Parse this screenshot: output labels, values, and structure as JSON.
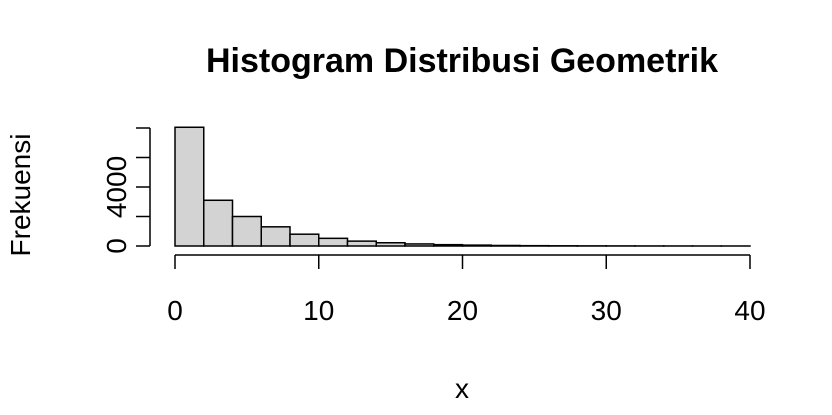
{
  "chart_data": {
    "type": "bar",
    "title": "Histogram Distribusi Geometrik",
    "xlabel": "x",
    "ylabel": "Frekuensi",
    "bin_width": 2,
    "bins": [
      {
        "x0": 0,
        "x1": 2,
        "count": 8050
      },
      {
        "x0": 2,
        "x1": 4,
        "count": 3100
      },
      {
        "x0": 4,
        "x1": 6,
        "count": 2000
      },
      {
        "x0": 6,
        "x1": 8,
        "count": 1300
      },
      {
        "x0": 8,
        "x1": 10,
        "count": 800
      },
      {
        "x0": 10,
        "x1": 12,
        "count": 520
      },
      {
        "x0": 12,
        "x1": 14,
        "count": 330
      },
      {
        "x0": 14,
        "x1": 16,
        "count": 220
      },
      {
        "x0": 16,
        "x1": 18,
        "count": 140
      },
      {
        "x0": 18,
        "x1": 20,
        "count": 90
      },
      {
        "x0": 20,
        "x1": 22,
        "count": 60
      },
      {
        "x0": 22,
        "x1": 24,
        "count": 35
      },
      {
        "x0": 24,
        "x1": 26,
        "count": 22
      },
      {
        "x0": 26,
        "x1": 28,
        "count": 14
      },
      {
        "x0": 28,
        "x1": 30,
        "count": 9
      },
      {
        "x0": 30,
        "x1": 32,
        "count": 6
      },
      {
        "x0": 32,
        "x1": 34,
        "count": 4
      },
      {
        "x0": 34,
        "x1": 36,
        "count": 2
      },
      {
        "x0": 36,
        "x1": 38,
        "count": 1
      },
      {
        "x0": 38,
        "x1": 40,
        "count": 1
      }
    ],
    "xlim": [
      0,
      40
    ],
    "ylim": [
      0,
      8000
    ],
    "x_ticks": [
      0,
      10,
      20,
      30,
      40
    ],
    "y_ticks": [
      0,
      2000,
      4000,
      6000,
      8000
    ],
    "y_tick_labels": [
      "0",
      "",
      "4000",
      "",
      ""
    ],
    "bar_fill": "#d3d3d3",
    "bar_stroke": "#000000",
    "grid": false,
    "legend": "none"
  }
}
